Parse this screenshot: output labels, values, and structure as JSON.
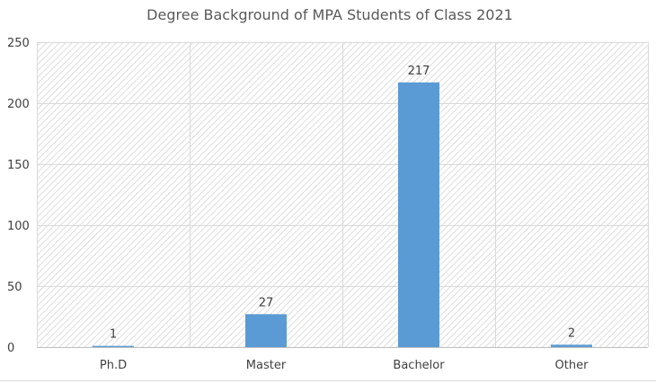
{
  "chart_data": {
    "type": "bar",
    "title": "Degree Background of MPA Students of Class 2021",
    "xlabel": "",
    "ylabel": "",
    "categories": [
      "Ph.D",
      "Master",
      "Bachelor",
      "Other"
    ],
    "values": [
      1,
      27,
      217,
      2
    ],
    "data_labels": [
      "1",
      "27",
      "217",
      "2"
    ],
    "ylim": [
      0,
      250
    ],
    "yticks": [
      0,
      50,
      100,
      150,
      200,
      250
    ],
    "ytick_labels": [
      "0",
      "50",
      "100",
      "150",
      "200",
      "250"
    ],
    "grid": true,
    "legend": "none",
    "bar_color": "#5b9bd5",
    "plot_background": "hatched-gray"
  }
}
